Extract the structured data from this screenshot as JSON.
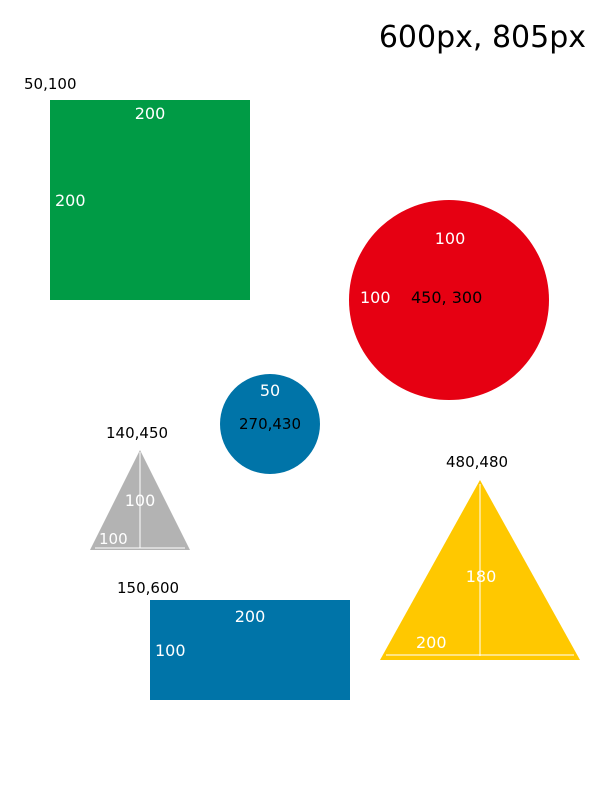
{
  "header": {
    "size_label": "600px, 805px"
  },
  "green_square": {
    "coord_label": "50,100",
    "width_label": "200",
    "height_label": "200",
    "color": "#009b45"
  },
  "red_circle": {
    "center_label": "450, 300",
    "radius_label_top": "100",
    "radius_label_left": "100",
    "color": "#e60012"
  },
  "blue_circle": {
    "center_label": "270,430",
    "radius_label": "50",
    "color": "#0074a8"
  },
  "gray_triangle": {
    "coord_label": "140,450",
    "height_label": "100",
    "base_label": "100",
    "color": "#b3b3b3"
  },
  "yellow_triangle": {
    "coord_label": "480,480",
    "height_label": "180",
    "base_label": "200",
    "color": "#ffc800"
  },
  "blue_rect": {
    "coord_label": "150,600",
    "width_label": "200",
    "height_label": "100",
    "color": "#0074a8"
  }
}
